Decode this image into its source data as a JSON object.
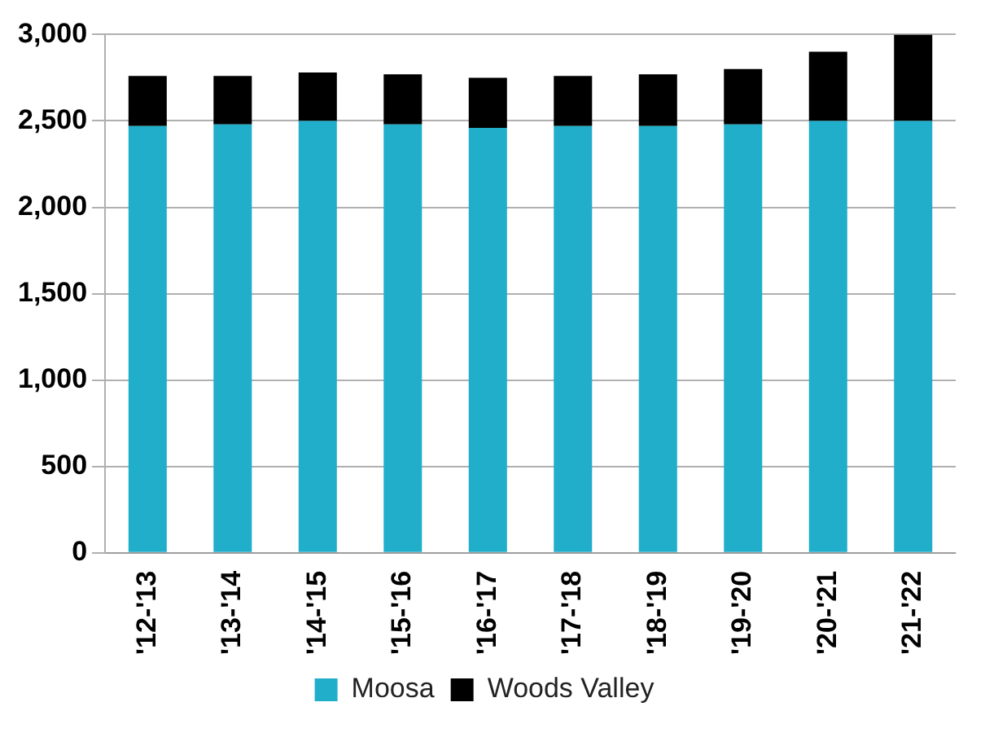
{
  "chart_data": {
    "type": "bar",
    "stacked": true,
    "categories": [
      "'12-'13",
      "'13-'14",
      "'14-'15",
      "'15-'16",
      "'16-'17",
      "'17-'18",
      "'18-'19",
      "'19-'20",
      "'20-'21",
      "'21-'22"
    ],
    "series": [
      {
        "name": "Moosa",
        "color": "#20aecb",
        "values": [
          2470,
          2480,
          2500,
          2480,
          2460,
          2470,
          2470,
          2480,
          2500,
          2500
        ]
      },
      {
        "name": "Woods Valley",
        "color": "#000000",
        "values": [
          290,
          280,
          280,
          290,
          290,
          290,
          300,
          320,
          400,
          500
        ]
      }
    ],
    "ylim": [
      0,
      3000
    ],
    "yticks": [
      0,
      500,
      {
        "value": 1000,
        "label": "1,000"
      },
      {
        "value": 1500,
        "label": "1,500"
      },
      {
        "value": 2000,
        "label": "2,000"
      },
      {
        "value": 2500,
        "label": "2,500"
      },
      {
        "value": 3000,
        "label": "3,000"
      }
    ],
    "grid": "y",
    "legend": "bottom"
  }
}
